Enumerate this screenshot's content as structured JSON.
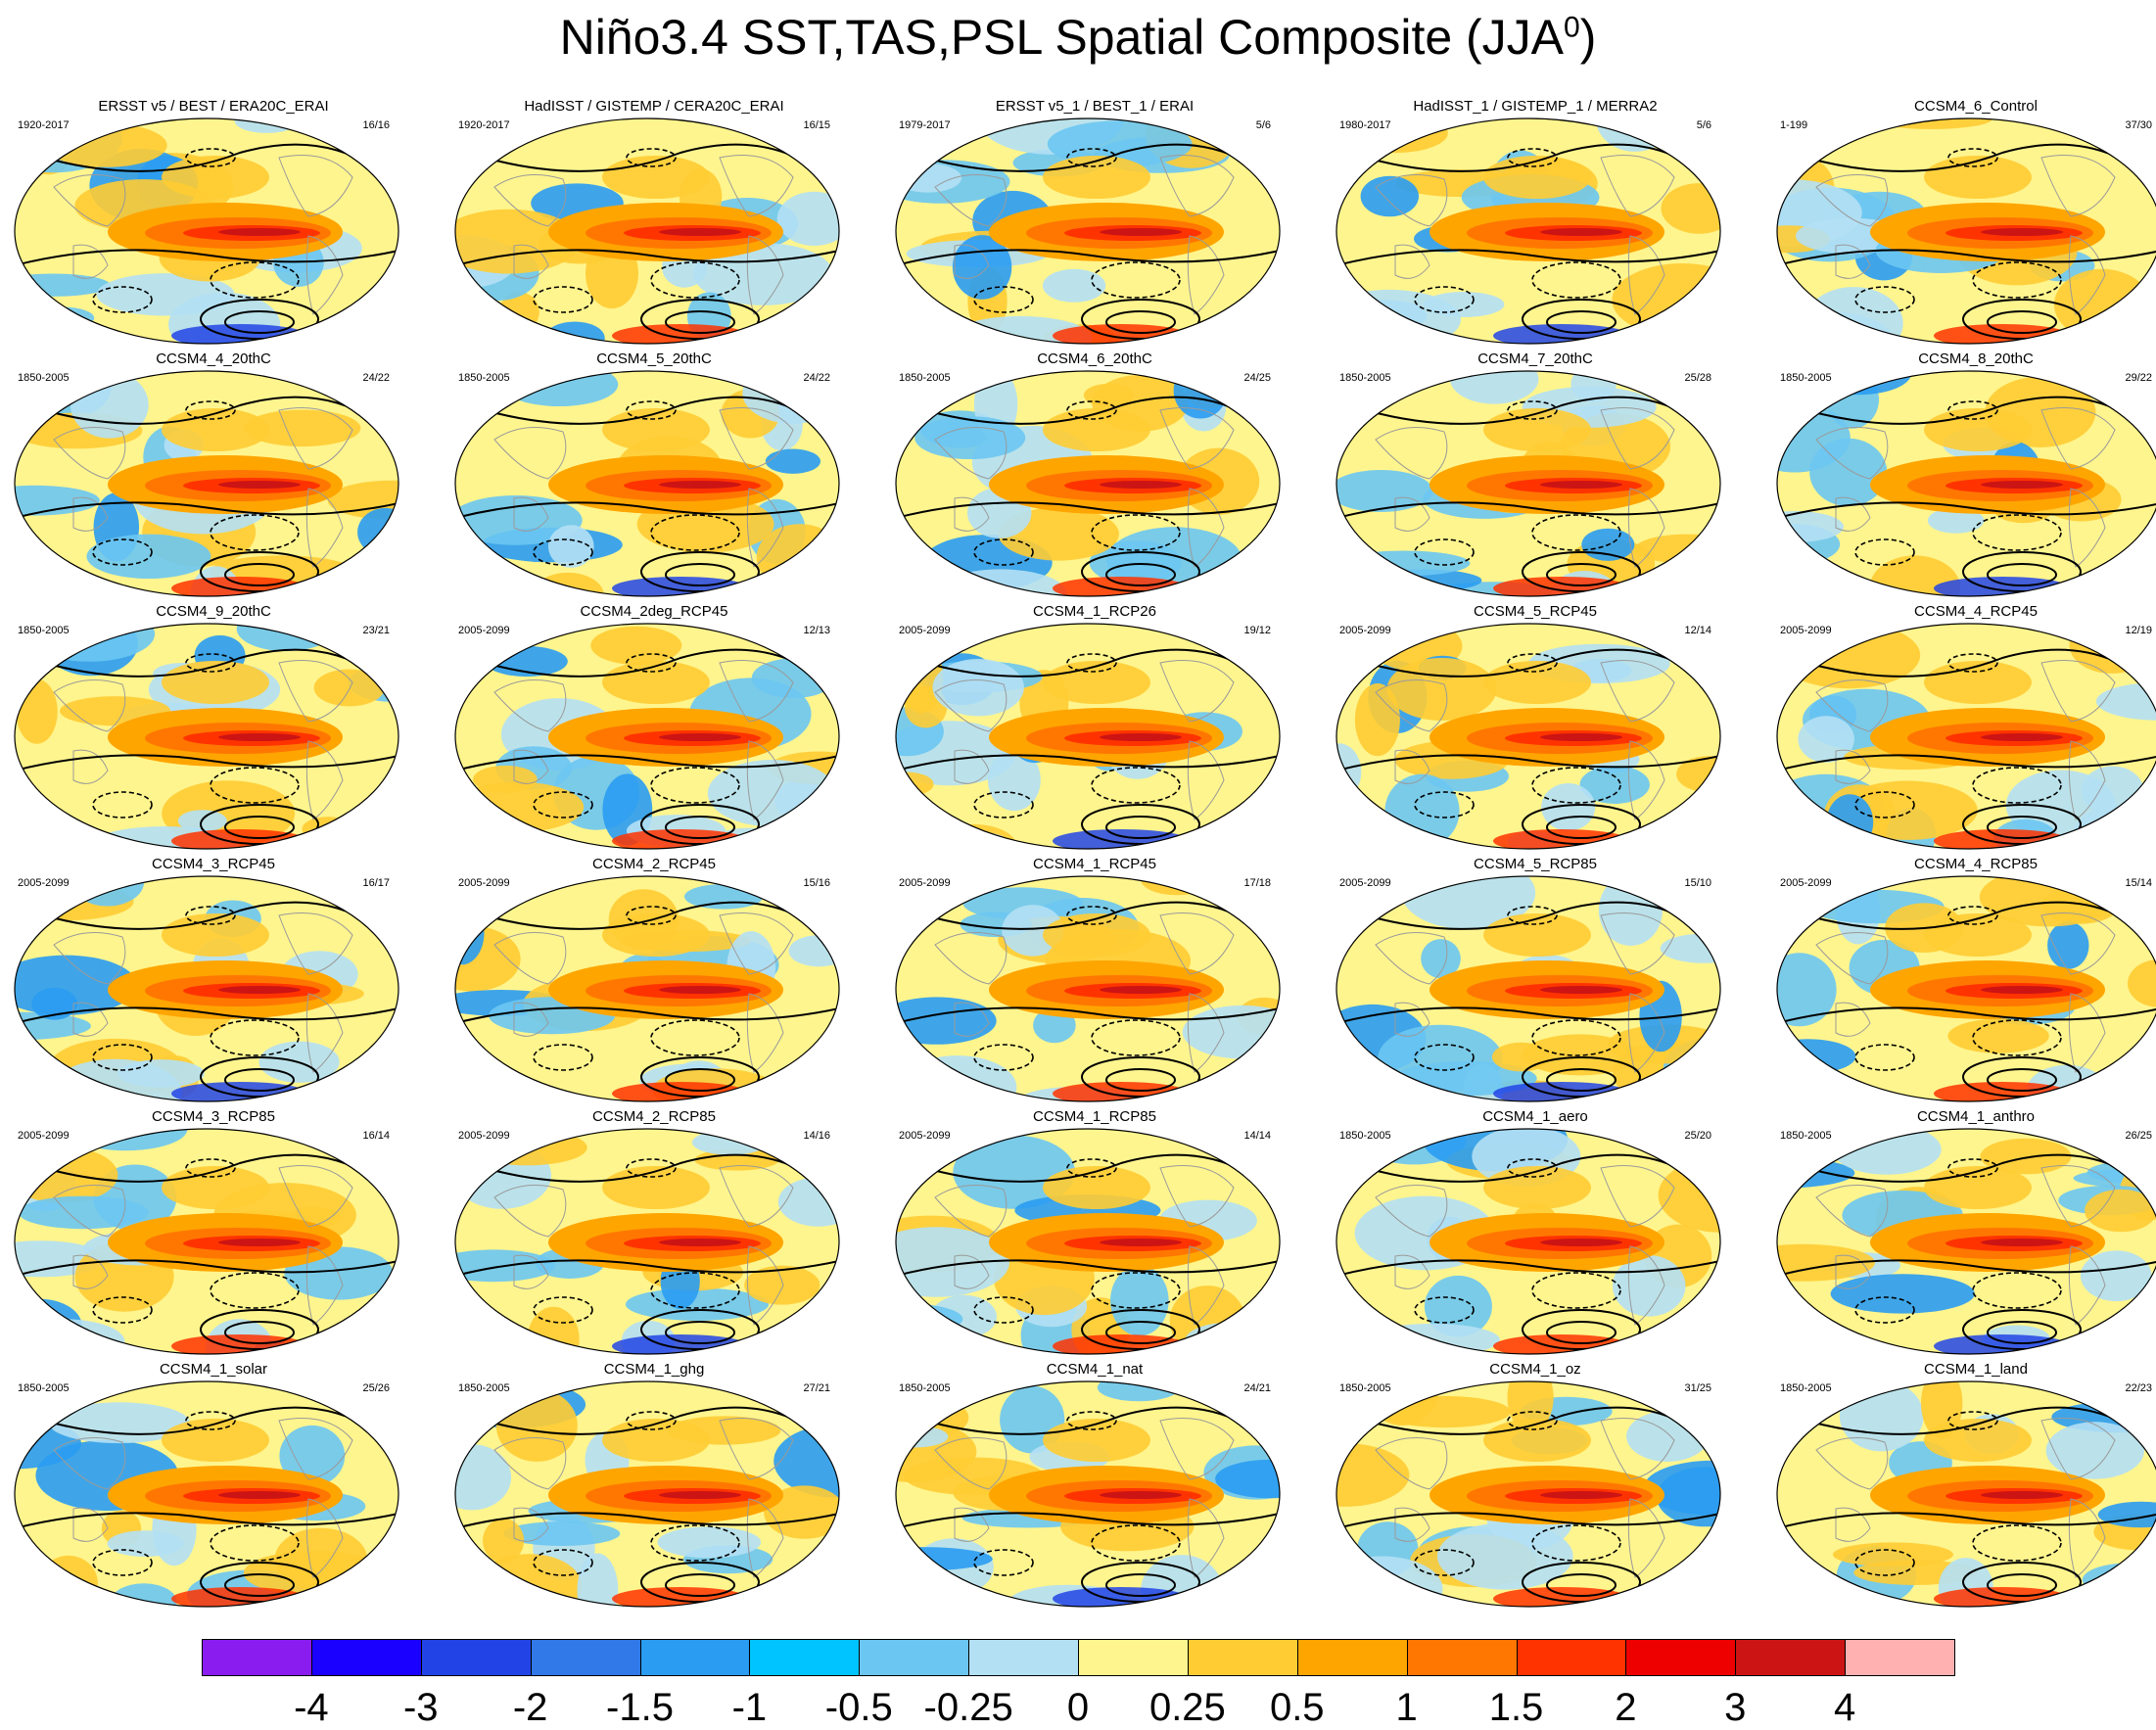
{
  "title": {
    "main": "Niño3.4 SST,TAS,PSL Spatial Composite (JJA",
    "superscript": "0",
    "close": ")"
  },
  "panels": [
    {
      "title": "ERSST v5 / BEST / ERA20C_ERAI",
      "period": "1920-2017",
      "count": "16/16"
    },
    {
      "title": "HadISST / GISTEMP / CERA20C_ERAI",
      "period": "1920-2017",
      "count": "16/15"
    },
    {
      "title": "ERSST v5_1 / BEST_1 / ERAI",
      "period": "1979-2017",
      "count": "5/6"
    },
    {
      "title": "HadISST_1 / GISTEMP_1 / MERRA2",
      "period": "1980-2017",
      "count": "5/6"
    },
    {
      "title": "CCSM4_6_Control",
      "period": "1-199",
      "count": "37/30"
    },
    {
      "title": "CCSM4_4_20thC",
      "period": "1850-2005",
      "count": "24/22"
    },
    {
      "title": "CCSM4_5_20thC",
      "period": "1850-2005",
      "count": "24/22"
    },
    {
      "title": "CCSM4_6_20thC",
      "period": "1850-2005",
      "count": "24/25"
    },
    {
      "title": "CCSM4_7_20thC",
      "period": "1850-2005",
      "count": "25/28"
    },
    {
      "title": "CCSM4_8_20thC",
      "period": "1850-2005",
      "count": "29/22"
    },
    {
      "title": "CCSM4_9_20thC",
      "period": "1850-2005",
      "count": "23/21"
    },
    {
      "title": "CCSM4_2deg_RCP45",
      "period": "2005-2099",
      "count": "12/13"
    },
    {
      "title": "CCSM4_1_RCP26",
      "period": "2005-2099",
      "count": "19/12"
    },
    {
      "title": "CCSM4_5_RCP45",
      "period": "2005-2099",
      "count": "12/14"
    },
    {
      "title": "CCSM4_4_RCP45",
      "period": "2005-2099",
      "count": "12/19"
    },
    {
      "title": "CCSM4_3_RCP45",
      "period": "2005-2099",
      "count": "16/17"
    },
    {
      "title": "CCSM4_2_RCP45",
      "period": "2005-2099",
      "count": "15/16"
    },
    {
      "title": "CCSM4_1_RCP45",
      "period": "2005-2099",
      "count": "17/18"
    },
    {
      "title": "CCSM4_5_RCP85",
      "period": "2005-2099",
      "count": "15/10"
    },
    {
      "title": "CCSM4_4_RCP85",
      "period": "2005-2099",
      "count": "15/14"
    },
    {
      "title": "CCSM4_3_RCP85",
      "period": "2005-2099",
      "count": "16/14"
    },
    {
      "title": "CCSM4_2_RCP85",
      "period": "2005-2099",
      "count": "14/16"
    },
    {
      "title": "CCSM4_1_RCP85",
      "period": "2005-2099",
      "count": "14/14"
    },
    {
      "title": "CCSM4_1_aero",
      "period": "1850-2005",
      "count": "25/20"
    },
    {
      "title": "CCSM4_1_anthro",
      "period": "1850-2005",
      "count": "26/25"
    },
    {
      "title": "CCSM4_1_solar",
      "period": "1850-2005",
      "count": "25/26"
    },
    {
      "title": "CCSM4_1_ghg",
      "period": "1850-2005",
      "count": "27/21"
    },
    {
      "title": "CCSM4_1_nat",
      "period": "1850-2005",
      "count": "24/21"
    },
    {
      "title": "CCSM4_1_oz",
      "period": "1850-2005",
      "count": "31/25"
    },
    {
      "title": "CCSM4_1_land",
      "period": "1850-2005",
      "count": "22/23"
    }
  ],
  "chart_data": {
    "type": "heatmap",
    "title": "Niño3.4 SST,TAS,PSL Spatial Composite (JJA0)",
    "layout": "6 rows x 5 columns of global maps",
    "colorbar": {
      "labels": [
        "-4",
        "-3",
        "-2",
        "-1.5",
        "-1",
        "-0.5",
        "-0.25",
        "0",
        "0.25",
        "0.5",
        "1",
        "1.5",
        "2",
        "3",
        "4"
      ],
      "colors": [
        "#8a1cf0",
        "#1a00ff",
        "#2244e6",
        "#3178e8",
        "#2a9cf2",
        "#00c4ff",
        "#6cc6f2",
        "#b4e0f4",
        "#fff58e",
        "#ffcc33",
        "#ffa500",
        "#ff7700",
        "#ff3300",
        "#ee0000",
        "#cc1414",
        "#ffb0b0"
      ]
    }
  }
}
